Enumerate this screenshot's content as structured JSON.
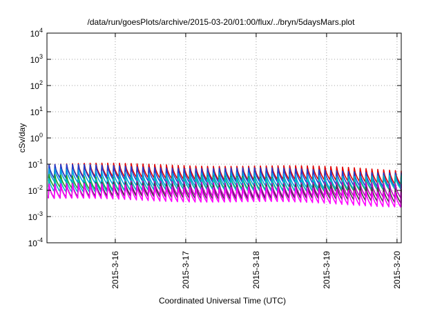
{
  "chart_data": {
    "type": "line",
    "title": "/data/run/goesPlots/archive/2015-03-20/01:00/flux/../bryn/5daysMars.plot",
    "xlabel": "Coordinated Universal Time (UTC)",
    "ylabel": "cSv/day",
    "y_scale": "log",
    "ylim_exponents": [
      -4,
      4
    ],
    "y_ticks": [
      {
        "base": "10",
        "exp": "-4"
      },
      {
        "base": "10",
        "exp": "-3"
      },
      {
        "base": "10",
        "exp": "-2"
      },
      {
        "base": "10",
        "exp": "-1"
      },
      {
        "base": "10",
        "exp": "0"
      },
      {
        "base": "10",
        "exp": "1"
      },
      {
        "base": "10",
        "exp": "2"
      },
      {
        "base": "10",
        "exp": "3"
      },
      {
        "base": "10",
        "exp": "4"
      }
    ],
    "x_range_days": [
      15.03,
      20.06
    ],
    "x_ticks": [
      {
        "label": "2015-3-16",
        "day": 16
      },
      {
        "label": "2015-3-17",
        "day": 17
      },
      {
        "label": "2015-3-18",
        "day": 18
      },
      {
        "label": "2015-3-19",
        "day": 19
      },
      {
        "label": "2015-3-20",
        "day": 20
      }
    ],
    "grid": true,
    "sawtooth_period_hours": 2.0,
    "series": [
      {
        "color": "#e00000",
        "peak_start": 0.095,
        "peak_end": 0.07,
        "trough_ratio": 0.3
      },
      {
        "color": "#1f3fd0",
        "peak_start": 0.08,
        "peak_end": 0.06,
        "trough_ratio": 0.3
      },
      {
        "color": "#00a0e0",
        "peak_start": 0.055,
        "peak_end": 0.04,
        "trough_ratio": 0.33
      },
      {
        "color": "#20a020",
        "peak_start": 0.04,
        "peak_end": 0.03,
        "trough_ratio": 0.33
      },
      {
        "color": "#00b8c8",
        "peak_start": 0.035,
        "peak_end": 0.028,
        "trough_ratio": 0.33
      },
      {
        "color": "#c000c0",
        "peak_start": 0.022,
        "peak_end": 0.016,
        "trough_ratio": 0.3
      },
      {
        "color": "#404040",
        "peak_start": 0.018,
        "peak_end": 0.013,
        "trough_ratio": 0.3
      },
      {
        "color": "#ff00ff",
        "peak_start": 0.015,
        "peak_end": 0.011,
        "trough_ratio": 0.28
      }
    ]
  }
}
